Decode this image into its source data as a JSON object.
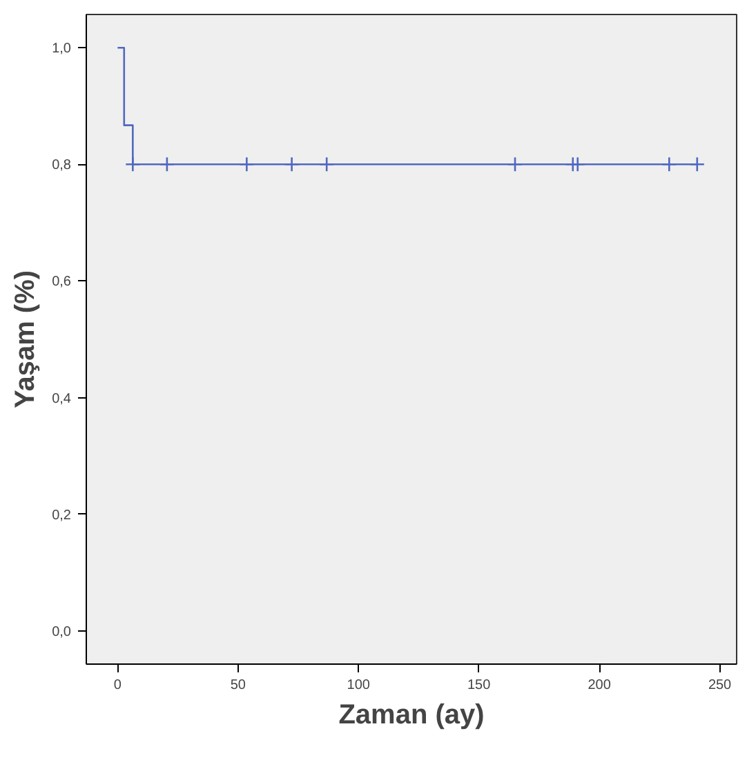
{
  "chart_data": {
    "type": "step",
    "xlabel": "Zaman (ay)",
    "ylabel": "Yaşam (%)",
    "xlim": [
      -13,
      257
    ],
    "ylim": [
      -0.057,
      1.057
    ],
    "xticks": [
      0,
      50,
      100,
      150,
      200,
      250
    ],
    "yticks": [
      {
        "value": 0,
        "label": "0,0"
      },
      {
        "value": 0.2,
        "label": "0,2"
      },
      {
        "value": 0.4,
        "label": "0,4"
      },
      {
        "value": 0.6,
        "label": "0,6"
      },
      {
        "value": 0.8,
        "label": "0,8"
      },
      {
        "value": 1.0,
        "label": "1,0"
      }
    ],
    "grid": false,
    "series": [
      {
        "color": "#5068c0",
        "marker": "none",
        "x": [
          0,
          2.7,
          6.3,
          240.6
        ],
        "values": [
          1.0,
          0.867,
          0.8,
          0.8
        ]
      },
      {
        "type": "scatter",
        "color": "#5068c0",
        "marker": "cross",
        "x": [
          6.3,
          20.5,
          53.6,
          72.3,
          86.8,
          165,
          189,
          191,
          229,
          240.6
        ],
        "values": [
          0.8,
          0.8,
          0.8,
          0.8,
          0.8,
          0.8,
          0.8,
          0.8,
          0.8,
          0.8
        ]
      }
    ]
  }
}
